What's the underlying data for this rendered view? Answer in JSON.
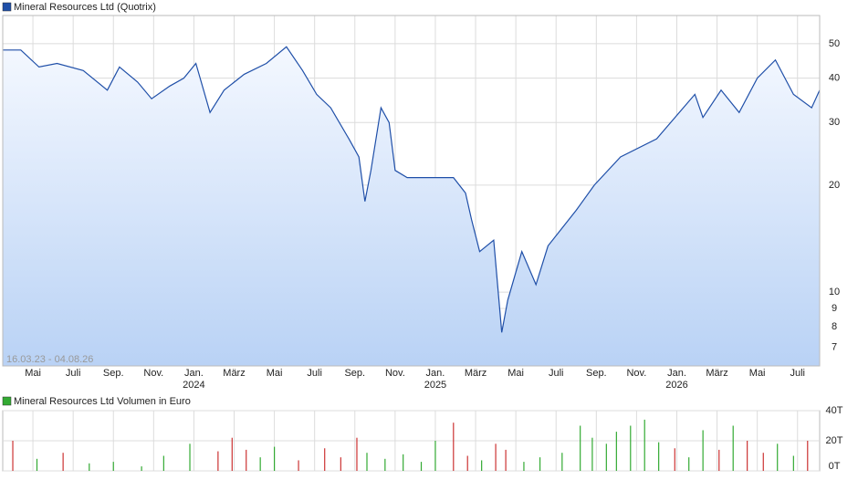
{
  "chart_data": [
    {
      "type": "line",
      "title": "Mineral Resources Ltd (Quotrix)",
      "date_range": "16.03.23 - 04.08.26",
      "color": "#1f4fa8",
      "log_scale": true,
      "grid": true,
      "area": true,
      "x": [
        0.5,
        1.4,
        2.3,
        3.2,
        4.5,
        5.7,
        6.3,
        7.2,
        7.9,
        8.8,
        9.5,
        10.1,
        10.8,
        11.5,
        12.5,
        13.6,
        14.6,
        15.4,
        16.1,
        16.8,
        17.7,
        18.2,
        18.5,
        18.8,
        19.3,
        19.7,
        20.0,
        20.6,
        21.8,
        22.9,
        23.5,
        23.8,
        24.2,
        24.9,
        25.3,
        25.6,
        26.3,
        27.0,
        27.6,
        29.0,
        29.9,
        31.2,
        33.0,
        34.9,
        35.3,
        36.2,
        37.1,
        38.0,
        38.9,
        39.8,
        40.7,
        41.1
      ],
      "values": [
        48,
        48,
        43,
        44,
        42,
        37,
        43,
        39,
        35,
        38,
        40,
        44,
        32,
        37,
        41,
        44,
        49,
        42,
        36,
        33,
        27,
        24,
        18,
        22,
        33,
        30,
        22,
        21,
        21,
        21,
        19,
        16,
        13,
        14,
        7.7,
        9.5,
        13,
        10.5,
        13.5,
        17,
        20,
        24,
        27,
        36,
        31,
        37,
        32,
        40,
        45,
        36,
        33,
        37
      ],
      "xlim": [
        0.5,
        41.1
      ],
      "xticks": [
        {
          "value": 2,
          "label": "Mai"
        },
        {
          "value": 4,
          "label": "Juli"
        },
        {
          "value": 6,
          "label": "Sep."
        },
        {
          "value": 8,
          "label": "Nov."
        },
        {
          "value": 10,
          "label": "Jan.",
          "year": "2024"
        },
        {
          "value": 12,
          "label": "März"
        },
        {
          "value": 14,
          "label": "Mai"
        },
        {
          "value": 16,
          "label": "Juli"
        },
        {
          "value": 18,
          "label": "Sep."
        },
        {
          "value": 20,
          "label": "Nov."
        },
        {
          "value": 22,
          "label": "Jan.",
          "year": "2025"
        },
        {
          "value": 24,
          "label": "März"
        },
        {
          "value": 26,
          "label": "Mai"
        },
        {
          "value": 28,
          "label": "Juli"
        },
        {
          "value": 30,
          "label": "Sep."
        },
        {
          "value": 32,
          "label": "Nov."
        },
        {
          "value": 34,
          "label": "Jan.",
          "year": "2026"
        },
        {
          "value": 36,
          "label": "März"
        },
        {
          "value": 38,
          "label": "Mai"
        },
        {
          "value": 40,
          "label": "Juli"
        }
      ],
      "ylim": [
        6.2,
        60
      ],
      "yticks": [
        7,
        8,
        9,
        10,
        20,
        30,
        40,
        50
      ]
    },
    {
      "type": "bar",
      "title": "Mineral Resources Ltd Volumen in Euro",
      "legend_color": "#33aa33",
      "x": [
        1.0,
        2.2,
        3.5,
        4.8,
        6.0,
        7.4,
        8.5,
        9.8,
        11.2,
        11.9,
        12.6,
        13.3,
        14.0,
        15.2,
        16.5,
        17.3,
        18.1,
        18.6,
        19.5,
        20.4,
        21.3,
        22.0,
        22.9,
        23.6,
        24.3,
        25.0,
        25.5,
        26.4,
        27.2,
        28.3,
        29.2,
        29.8,
        30.5,
        31.0,
        31.7,
        32.4,
        33.1,
        33.9,
        34.6,
        35.3,
        36.1,
        36.8,
        37.5,
        38.3,
        39.0,
        39.8,
        40.5
      ],
      "values": [
        20000,
        8000,
        12000,
        5000,
        6000,
        3000,
        10000,
        18000,
        13000,
        22000,
        14000,
        9000,
        16000,
        7000,
        15000,
        9000,
        22000,
        12000,
        8000,
        11000,
        6000,
        20000,
        32000,
        10000,
        7000,
        18000,
        14000,
        6000,
        9000,
        12000,
        30000,
        22000,
        18000,
        26000,
        30000,
        34000,
        19000,
        15000,
        9000,
        27000,
        14000,
        30000,
        20000,
        12000,
        18000,
        10000,
        20000
      ],
      "colors": [
        "#cc3333",
        "#33aa33",
        "#cc3333",
        "#33aa33",
        "#33aa33",
        "#33aa33",
        "#33aa33",
        "#33aa33",
        "#cc3333",
        "#cc3333",
        "#cc3333",
        "#33aa33",
        "#33aa33",
        "#cc3333",
        "#cc3333",
        "#cc3333",
        "#cc3333",
        "#33aa33",
        "#33aa33",
        "#33aa33",
        "#33aa33",
        "#33aa33",
        "#cc3333",
        "#cc3333",
        "#33aa33",
        "#cc3333",
        "#cc3333",
        "#33aa33",
        "#33aa33",
        "#33aa33",
        "#33aa33",
        "#33aa33",
        "#33aa33",
        "#33aa33",
        "#33aa33",
        "#33aa33",
        "#33aa33",
        "#cc3333",
        "#33aa33",
        "#33aa33",
        "#cc3333",
        "#33aa33",
        "#cc3333",
        "#cc3333",
        "#33aa33",
        "#33aa33",
        "#cc3333"
      ],
      "xlim": [
        0.5,
        41.1
      ],
      "ylim": [
        0,
        40000
      ],
      "yticks": [
        {
          "value": 0,
          "label": "0T"
        },
        {
          "value": 20000,
          "label": "20T"
        },
        {
          "value": 40000,
          "label": "40T"
        }
      ]
    }
  ]
}
